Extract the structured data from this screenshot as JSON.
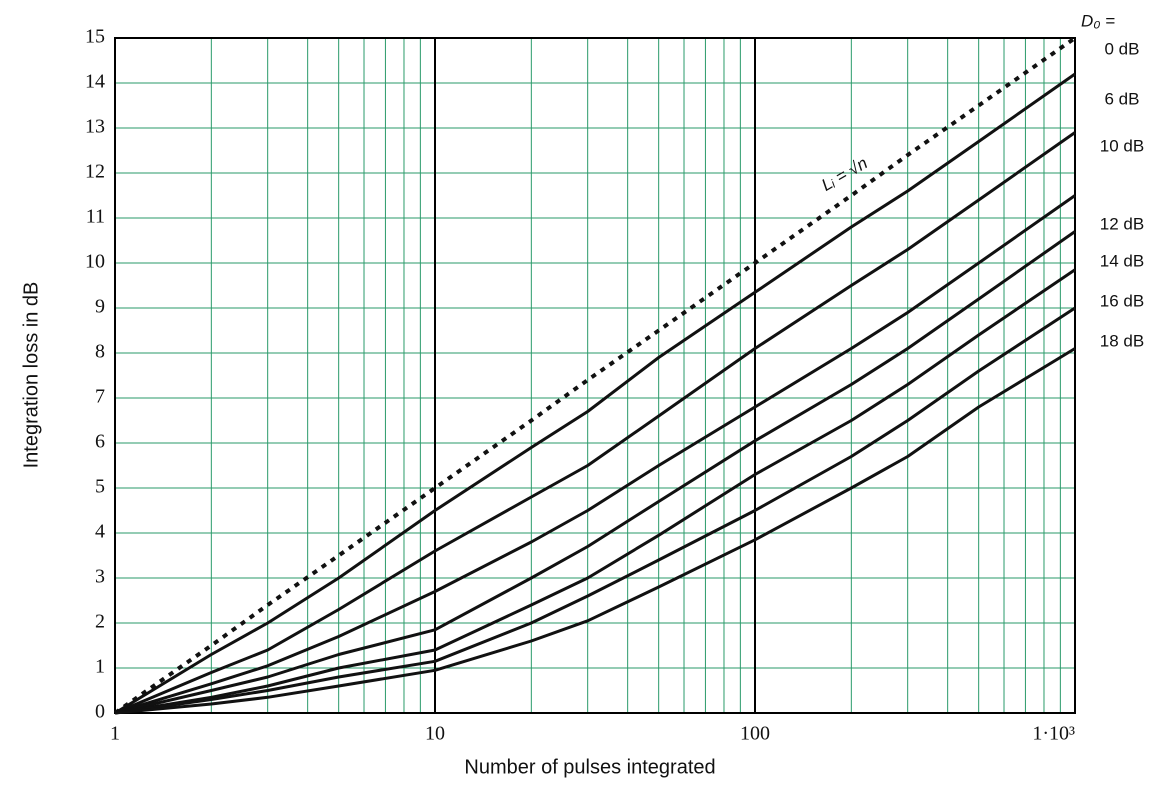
{
  "chart_data": {
    "type": "line",
    "xlabel": "Number of pulses integrated",
    "ylabel": "Integration loss in dB",
    "legend_title": "D₀ =",
    "x": [
      1,
      2,
      3,
      5,
      10,
      20,
      30,
      50,
      100,
      200,
      300,
      500,
      1000
    ],
    "xlog": true,
    "xlim": [
      1,
      1000
    ],
    "xticks": [
      1,
      10,
      100,
      {
        "value": 1000,
        "label": "1·10³"
      }
    ],
    "ylim": [
      0,
      15
    ],
    "yticks": [
      0,
      1,
      2,
      3,
      4,
      5,
      6,
      7,
      8,
      9,
      10,
      11,
      12,
      13,
      14,
      15
    ],
    "grid": true,
    "grid_color": "#2a9a6a",
    "series": [
      {
        "name": "Lᵢ = √n",
        "color": "#111111",
        "dashed": true,
        "values": [
          0,
          1.5,
          2.4,
          3.5,
          5.0,
          6.5,
          7.4,
          8.5,
          10.0,
          11.5,
          12.4,
          13.5,
          15.0
        ]
      },
      {
        "name": "0 dB",
        "color": "#111111",
        "values": [
          0,
          1.3,
          2.0,
          3.0,
          4.5,
          5.9,
          6.7,
          7.9,
          9.35,
          10.8,
          11.6,
          12.7,
          14.2
        ]
      },
      {
        "name": "6 dB",
        "color": "#111111",
        "values": [
          0,
          0.9,
          1.4,
          2.3,
          3.6,
          4.8,
          5.5,
          6.6,
          8.1,
          9.5,
          10.3,
          11.4,
          12.9
        ]
      },
      {
        "name": "10 dB",
        "color": "#111111",
        "values": [
          0,
          0.65,
          1.05,
          1.7,
          2.7,
          3.8,
          4.5,
          5.5,
          6.8,
          8.1,
          8.9,
          10.0,
          11.5
        ]
      },
      {
        "name": "12 dB",
        "color": "#111111",
        "values": [
          0,
          0.5,
          0.8,
          1.3,
          1.85,
          3.0,
          3.7,
          4.7,
          6.05,
          7.3,
          8.1,
          9.2,
          10.7
        ]
      },
      {
        "name": "14 dB",
        "color": "#111111",
        "values": [
          0,
          0.35,
          0.6,
          1.0,
          1.4,
          2.4,
          3.0,
          3.95,
          5.3,
          6.5,
          7.3,
          8.4,
          9.85
        ]
      },
      {
        "name": "16 dB",
        "color": "#111111",
        "values": [
          0,
          0.3,
          0.5,
          0.8,
          1.15,
          2.0,
          2.6,
          3.4,
          4.5,
          5.7,
          6.5,
          7.6,
          9.0
        ]
      },
      {
        "name": "18 dB",
        "color": "#111111",
        "values": [
          0,
          0.2,
          0.35,
          0.6,
          0.95,
          1.6,
          2.05,
          2.8,
          3.85,
          5.0,
          5.7,
          6.8,
          8.1
        ]
      }
    ]
  }
}
